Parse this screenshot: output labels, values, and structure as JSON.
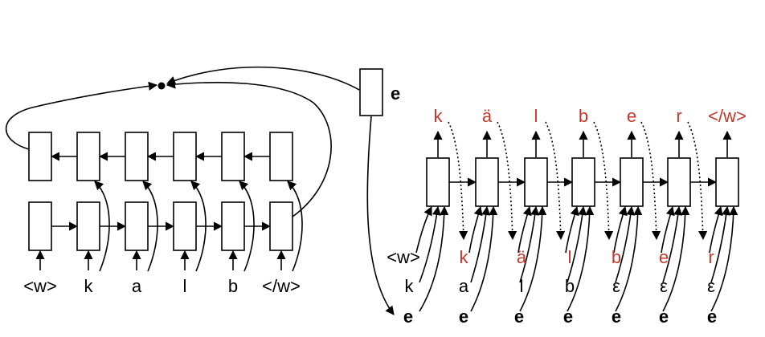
{
  "encoder": {
    "input_tokens": [
      "<w>",
      "k",
      "a",
      "l",
      "b",
      "</w>"
    ]
  },
  "embedding_label": "e",
  "decoder": {
    "output_tokens": [
      "k",
      "ä",
      "l",
      "b",
      "e",
      "r",
      "</w>"
    ],
    "prev_outputs": [
      "<w>",
      "k",
      "ä",
      "l",
      "b",
      "e",
      "r"
    ],
    "source_tokens": [
      "k",
      "a",
      "l",
      "b",
      "ε",
      "ε",
      "ε"
    ],
    "embedding_tokens": [
      "e",
      "e",
      "e",
      "e",
      "e",
      "e",
      "e"
    ]
  },
  "colors": {
    "black": "#000000",
    "red": "#c0392b"
  }
}
